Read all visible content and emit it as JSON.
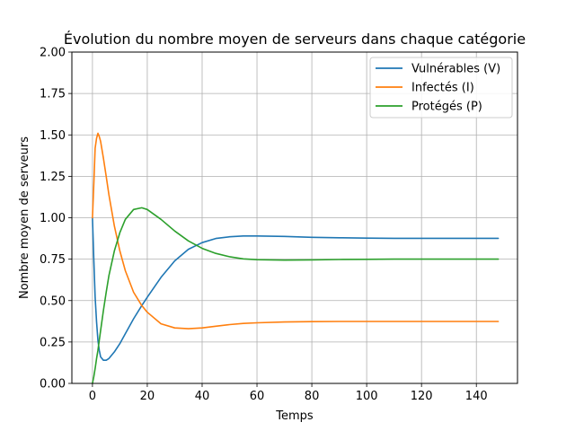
{
  "chart_data": {
    "type": "line",
    "title": "Évolution du nombre moyen de serveurs dans chaque catégorie",
    "xlabel": "Temps",
    "ylabel": "Nombre moyen de serveurs",
    "xlim": [
      -7.5,
      155
    ],
    "ylim": [
      0,
      2
    ],
    "xticks": [
      0,
      20,
      40,
      60,
      80,
      100,
      120,
      140
    ],
    "yticks": [
      0.0,
      0.25,
      0.5,
      0.75,
      1.0,
      1.25,
      1.5,
      1.75,
      2.0
    ],
    "xtick_labels": [
      "0",
      "20",
      "40",
      "60",
      "80",
      "100",
      "120",
      "140"
    ],
    "ytick_labels": [
      "0.00",
      "0.25",
      "0.50",
      "0.75",
      "1.00",
      "1.25",
      "1.50",
      "1.75",
      "2.00"
    ],
    "grid": true,
    "legend_position": "top-right",
    "series": [
      {
        "name": "Vulnérables (V)",
        "color": "#1f77b4",
        "x": [
          0,
          0.5,
          1,
          1.5,
          2,
          2.5,
          3,
          4,
          5,
          6,
          8,
          10,
          12,
          15,
          18,
          20,
          25,
          30,
          35,
          40,
          45,
          50,
          55,
          60,
          70,
          80,
          90,
          100,
          110,
          120,
          130,
          140,
          148
        ],
        "y": [
          1.0,
          0.75,
          0.52,
          0.37,
          0.26,
          0.2,
          0.16,
          0.14,
          0.14,
          0.15,
          0.19,
          0.24,
          0.3,
          0.39,
          0.47,
          0.52,
          0.64,
          0.74,
          0.81,
          0.85,
          0.875,
          0.885,
          0.89,
          0.89,
          0.887,
          0.882,
          0.879,
          0.877,
          0.876,
          0.876,
          0.876,
          0.876,
          0.876
        ]
      },
      {
        "name": "Infectés (I)",
        "color": "#ff7f0e",
        "x": [
          0,
          0.5,
          1,
          1.5,
          2,
          2.5,
          3,
          4,
          5,
          6,
          8,
          10,
          12,
          15,
          18,
          20,
          25,
          30,
          35,
          40,
          45,
          50,
          55,
          60,
          70,
          80,
          90,
          100,
          110,
          120,
          130,
          140,
          148
        ],
        "y": [
          1.0,
          1.2,
          1.42,
          1.48,
          1.51,
          1.49,
          1.46,
          1.36,
          1.25,
          1.14,
          0.95,
          0.8,
          0.68,
          0.55,
          0.47,
          0.43,
          0.36,
          0.335,
          0.33,
          0.335,
          0.345,
          0.355,
          0.362,
          0.366,
          0.371,
          0.373,
          0.374,
          0.374,
          0.374,
          0.374,
          0.374,
          0.374,
          0.374
        ]
      },
      {
        "name": "Protégés (P)",
        "color": "#2ca02c",
        "x": [
          0,
          0.5,
          1,
          1.5,
          2,
          2.5,
          3,
          4,
          5,
          6,
          8,
          10,
          12,
          15,
          18,
          20,
          25,
          30,
          35,
          40,
          45,
          50,
          55,
          60,
          70,
          80,
          90,
          100,
          110,
          120,
          130,
          140,
          148
        ],
        "y": [
          0.0,
          0.04,
          0.09,
          0.15,
          0.2,
          0.26,
          0.32,
          0.44,
          0.55,
          0.65,
          0.8,
          0.91,
          0.99,
          1.05,
          1.06,
          1.05,
          0.99,
          0.92,
          0.86,
          0.815,
          0.785,
          0.765,
          0.752,
          0.747,
          0.744,
          0.746,
          0.748,
          0.749,
          0.75,
          0.75,
          0.75,
          0.75,
          0.75
        ]
      }
    ]
  }
}
